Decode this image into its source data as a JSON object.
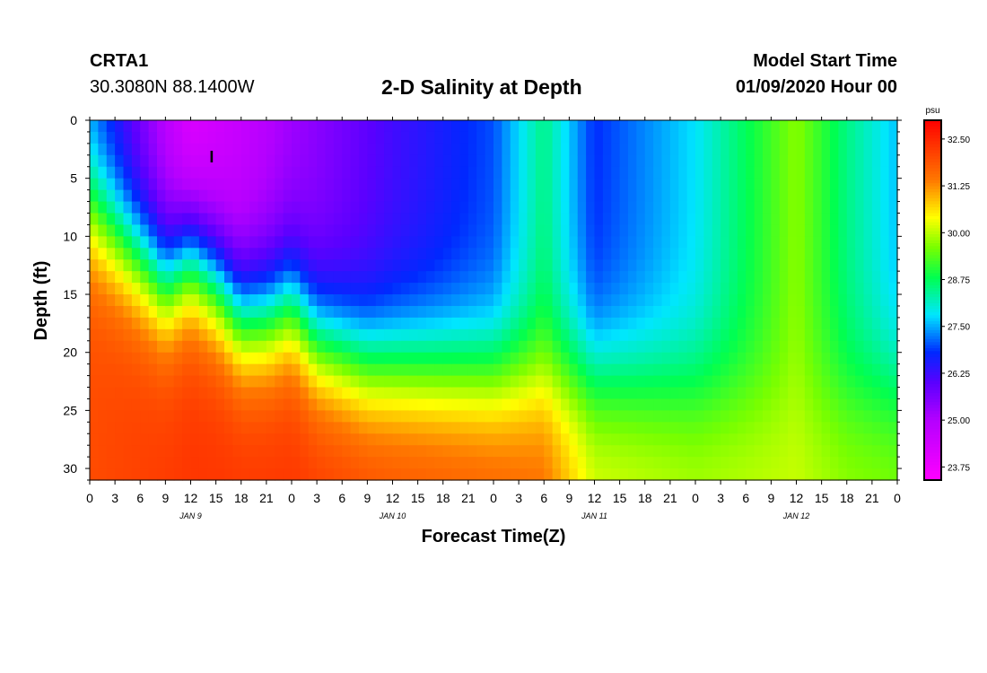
{
  "header": {
    "station": "CRTA1",
    "coords": "30.3080N 88.1400W",
    "title": "2-D Salinity at Depth",
    "start_label": "Model Start Time",
    "start_value": "01/09/2020 Hour 00"
  },
  "chart_data": {
    "type": "heatmap",
    "title": "2-D Salinity at Depth",
    "xlabel": "Forecast Time(Z)",
    "ylabel": "Depth (ft)",
    "x_ticks": [
      "0",
      "3",
      "6",
      "9",
      "12",
      "15",
      "18",
      "21",
      "0",
      "3",
      "6",
      "9",
      "12",
      "15",
      "18",
      "21",
      "0",
      "3",
      "6",
      "9",
      "12",
      "15",
      "18",
      "21",
      "0",
      "3",
      "6",
      "9",
      "12",
      "15",
      "18",
      "21",
      "0"
    ],
    "x_range_hours": [
      0,
      96
    ],
    "day_labels": [
      {
        "label": "JAN 9",
        "hour": 12
      },
      {
        "label": "JAN 10",
        "hour": 36
      },
      {
        "label": "JAN 11",
        "hour": 60
      },
      {
        "label": "JAN 12",
        "hour": 84
      }
    ],
    "y_ticks": [
      "0",
      "5",
      "10",
      "15",
      "20",
      "25",
      "30"
    ],
    "y_tick_values": [
      0,
      5,
      10,
      15,
      20,
      25,
      30
    ],
    "ylim": [
      0,
      31
    ],
    "colorbar": {
      "unit": "psu",
      "labels": [
        "32.50",
        "31.25",
        "30.00",
        "28.75",
        "27.50",
        "26.25",
        "25.00",
        "23.75"
      ],
      "range": [
        23.4,
        33.0
      ]
    },
    "marker": {
      "label": "I",
      "hour": 14.5,
      "depth": 3
    },
    "surface_salinity_profile": [
      {
        "hour": 0,
        "surface": 27.2,
        "deep": 32.0
      },
      {
        "hour": 12,
        "surface": 24.0,
        "deep": 32.3
      },
      {
        "hour": 24,
        "surface": 25.2,
        "deep": 32.3
      },
      {
        "hour": 36,
        "surface": 26.2,
        "deep": 32.0
      },
      {
        "hour": 48,
        "surface": 27.0,
        "deep": 31.8
      },
      {
        "hour": 54,
        "surface": 28.5,
        "deep": 31.6
      },
      {
        "hour": 60,
        "surface": 26.8,
        "deep": 30.3
      },
      {
        "hour": 72,
        "surface": 27.8,
        "deep": 30.0
      },
      {
        "hour": 84,
        "surface": 29.7,
        "deep": 30.1
      },
      {
        "hour": 90,
        "surface": 28.5,
        "deep": 29.8
      },
      {
        "hour": 96,
        "surface": 27.6,
        "deep": 29.7
      }
    ]
  }
}
